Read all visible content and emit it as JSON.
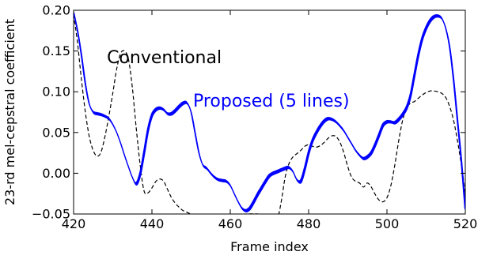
{
  "chart_data": {
    "type": "line",
    "xlabel": "Frame index",
    "ylabel": "23-rd mel-cepstral coefficient",
    "xlim": [
      420,
      520
    ],
    "ylim": [
      -0.05,
      0.2
    ],
    "xticks": [
      420,
      440,
      460,
      480,
      500,
      520
    ],
    "xtick_labels": [
      "420",
      "440",
      "460",
      "480",
      "500",
      "520"
    ],
    "yticks": [
      -0.05,
      0.0,
      0.05,
      0.1,
      0.15,
      0.2
    ],
    "ytick_labels": [
      "−0.05",
      "0.00",
      "0.05",
      "0.10",
      "0.15",
      "0.20"
    ],
    "grid": false,
    "annotations": [
      {
        "id": "conventional",
        "text": "Conventional",
        "x": 428.5,
        "y": 0.135,
        "color": "#000000"
      },
      {
        "id": "proposed",
        "text": "Proposed (5 lines)",
        "x": 450.5,
        "y": 0.082,
        "color": "#0000ff"
      }
    ],
    "series": [
      {
        "id": "conventional",
        "style": "dashed",
        "color": "#000000",
        "points": [
          [
            420,
            0.195
          ],
          [
            421,
            0.16
          ],
          [
            422,
            0.115
          ],
          [
            423,
            0.075
          ],
          [
            424,
            0.045
          ],
          [
            425,
            0.028
          ],
          [
            426,
            0.021
          ],
          [
            427,
            0.026
          ],
          [
            428,
            0.045
          ],
          [
            429,
            0.07
          ],
          [
            430,
            0.098
          ],
          [
            431,
            0.128
          ],
          [
            432,
            0.147
          ],
          [
            433,
            0.15
          ],
          [
            434,
            0.14
          ],
          [
            435,
            0.105
          ],
          [
            436,
            0.055
          ],
          [
            437,
            0.01
          ],
          [
            438,
            -0.022
          ],
          [
            439,
            -0.024
          ],
          [
            440,
            -0.018
          ],
          [
            441,
            -0.01
          ],
          [
            442,
            -0.007
          ],
          [
            443,
            -0.01
          ],
          [
            444,
            -0.02
          ],
          [
            445,
            -0.03
          ],
          [
            446,
            -0.037
          ],
          [
            447,
            -0.042
          ],
          [
            448,
            -0.046
          ],
          [
            449,
            -0.048
          ],
          [
            450,
            -0.05
          ],
          [
            452,
            -0.051
          ],
          [
            455,
            -0.052
          ],
          [
            458,
            -0.052
          ],
          [
            461,
            -0.051
          ],
          [
            464,
            -0.05
          ],
          [
            467,
            -0.05
          ],
          [
            470,
            -0.052
          ],
          [
            472,
            -0.054
          ],
          [
            473,
            -0.035
          ],
          [
            474,
            -0.005
          ],
          [
            475,
            0.012
          ],
          [
            476,
            0.02
          ],
          [
            477,
            0.024
          ],
          [
            478,
            0.028
          ],
          [
            479,
            0.033
          ],
          [
            480,
            0.035
          ],
          [
            481,
            0.033
          ],
          [
            482,
            0.032
          ],
          [
            483,
            0.034
          ],
          [
            484,
            0.038
          ],
          [
            485,
            0.043
          ],
          [
            486,
            0.046
          ],
          [
            487,
            0.045
          ],
          [
            488,
            0.038
          ],
          [
            489,
            0.025
          ],
          [
            490,
            0.008
          ],
          [
            491,
            -0.005
          ],
          [
            492,
            -0.01
          ],
          [
            493,
            -0.012
          ],
          [
            494,
            -0.017
          ],
          [
            495,
            -0.012
          ],
          [
            496,
            -0.017
          ],
          [
            497,
            -0.026
          ],
          [
            498,
            -0.033
          ],
          [
            499,
            -0.035
          ],
          [
            500,
            -0.03
          ],
          [
            501,
            -0.015
          ],
          [
            502,
            0.01
          ],
          [
            503,
            0.04
          ],
          [
            504,
            0.065
          ],
          [
            505,
            0.08
          ],
          [
            506,
            0.086
          ],
          [
            507,
            0.088
          ],
          [
            508,
            0.092
          ],
          [
            509,
            0.096
          ],
          [
            510,
            0.099
          ],
          [
            511,
            0.101
          ],
          [
            512,
            0.101
          ],
          [
            513,
            0.1
          ],
          [
            514,
            0.098
          ],
          [
            515,
            0.093
          ],
          [
            516,
            0.082
          ],
          [
            517,
            0.065
          ],
          [
            518,
            0.04
          ],
          [
            519,
            0.01
          ],
          [
            520,
            -0.025
          ]
        ]
      },
      {
        "id": "proposed",
        "style": "solid",
        "color": "#0000ff",
        "lines": 5,
        "points": [
          [
            420,
            0.198
          ],
          [
            421,
            0.175
          ],
          [
            422,
            0.145
          ],
          [
            423,
            0.11
          ],
          [
            424,
            0.085
          ],
          [
            425,
            0.075
          ],
          [
            426,
            0.073
          ],
          [
            427,
            0.072
          ],
          [
            428,
            0.07
          ],
          [
            429,
            0.067
          ],
          [
            430,
            0.06
          ],
          [
            431,
            0.05
          ],
          [
            432,
            0.037
          ],
          [
            433,
            0.022
          ],
          [
            434,
            0.008
          ],
          [
            435,
            -0.005
          ],
          [
            436,
            -0.013
          ],
          [
            437,
            -0.001
          ],
          [
            438,
            0.025
          ],
          [
            439,
            0.053
          ],
          [
            440,
            0.071
          ],
          [
            441,
            0.078
          ],
          [
            442,
            0.08
          ],
          [
            443,
            0.078
          ],
          [
            444,
            0.073
          ],
          [
            445,
            0.073
          ],
          [
            446,
            0.077
          ],
          [
            447,
            0.082
          ],
          [
            448,
            0.086
          ],
          [
            449,
            0.086
          ],
          [
            450,
            0.075
          ],
          [
            451,
            0.05
          ],
          [
            452,
            0.025
          ],
          [
            453,
            0.01
          ],
          [
            454,
            0.006
          ],
          [
            455,
            0.0
          ],
          [
            456,
            -0.005
          ],
          [
            457,
            -0.008
          ],
          [
            458,
            -0.009
          ],
          [
            459,
            -0.01
          ],
          [
            460,
            -0.015
          ],
          [
            461,
            -0.025
          ],
          [
            462,
            -0.035
          ],
          [
            463,
            -0.043
          ],
          [
            464,
            -0.046
          ],
          [
            465,
            -0.043
          ],
          [
            466,
            -0.035
          ],
          [
            467,
            -0.026
          ],
          [
            468,
            -0.018
          ],
          [
            469,
            -0.01
          ],
          [
            470,
            -0.003
          ],
          [
            471,
            0.0
          ],
          [
            472,
            0.002
          ],
          [
            473,
            0.004
          ],
          [
            474,
            0.006
          ],
          [
            475,
            0.007
          ],
          [
            476,
            0.002
          ],
          [
            477,
            -0.008
          ],
          [
            478,
            -0.01
          ],
          [
            479,
            0.005
          ],
          [
            480,
            0.025
          ],
          [
            481,
            0.04
          ],
          [
            482,
            0.05
          ],
          [
            483,
            0.058
          ],
          [
            484,
            0.064
          ],
          [
            485,
            0.067
          ],
          [
            486,
            0.066
          ],
          [
            487,
            0.063
          ],
          [
            488,
            0.058
          ],
          [
            489,
            0.052
          ],
          [
            490,
            0.044
          ],
          [
            491,
            0.036
          ],
          [
            492,
            0.028
          ],
          [
            493,
            0.022
          ],
          [
            494,
            0.018
          ],
          [
            495,
            0.02
          ],
          [
            496,
            0.025
          ],
          [
            497,
            0.035
          ],
          [
            498,
            0.047
          ],
          [
            499,
            0.059
          ],
          [
            500,
            0.063
          ],
          [
            501,
            0.063
          ],
          [
            502,
            0.062
          ],
          [
            503,
            0.066
          ],
          [
            504,
            0.072
          ],
          [
            505,
            0.08
          ],
          [
            506,
            0.095
          ],
          [
            507,
            0.12
          ],
          [
            508,
            0.145
          ],
          [
            509,
            0.165
          ],
          [
            510,
            0.178
          ],
          [
            511,
            0.187
          ],
          [
            512,
            0.192
          ],
          [
            513,
            0.193
          ],
          [
            514,
            0.19
          ],
          [
            515,
            0.178
          ],
          [
            516,
            0.155
          ],
          [
            517,
            0.115
          ],
          [
            518,
            0.065
          ],
          [
            519,
            0.015
          ],
          [
            520,
            -0.045
          ]
        ]
      }
    ]
  }
}
